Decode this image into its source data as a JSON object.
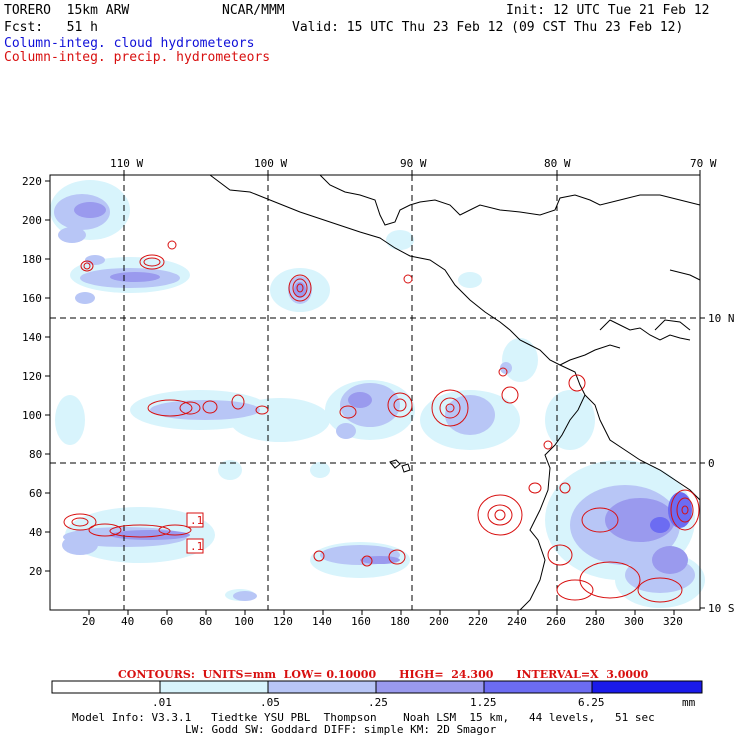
{
  "header": {
    "model": "TORERO  15km ARW",
    "center": "NCAR/MMM",
    "init": "Init: 12 UTC Tue 21 Feb 12",
    "fcst": "Fcst:   51 h",
    "valid": "Valid: 15 UTC Thu 23 Feb 12 (09 CST Thu 23 Feb 12)",
    "field1": "Column-integ. cloud hydrometeors",
    "field2": "Column-integ. precip. hydrometeors",
    "field1_color": "#1010d8",
    "field2_color": "#d81010"
  },
  "top_axis": [
    "110 W",
    "100 W",
    "90 W",
    "80 W",
    "70 W"
  ],
  "right_axis": [
    "10 N",
    "0",
    "10 S"
  ],
  "left_axis": [
    "220",
    "200",
    "180",
    "160",
    "140",
    "120",
    "100",
    "80",
    "60",
    "40",
    "20"
  ],
  "bottom_axis": [
    "20",
    "40",
    "60",
    "80",
    "100",
    "120",
    "140",
    "160",
    "180",
    "200",
    "220",
    "240",
    "260",
    "280",
    "300",
    "320"
  ],
  "plot_labels": [
    ".1",
    ".1"
  ],
  "contours_note": "CONTOURS:  UNITS=mm  LOW= 0.10000      HIGH=  24.300      INTERVAL=X  3.0000",
  "colorbar": {
    "ticks": [
      ".01",
      ".05",
      ".25",
      "1.25",
      "6.25"
    ],
    "unit": "mm",
    "colors": [
      "#ffffff",
      "#d8f4fc",
      "#b8c6f6",
      "#9a9aee",
      "#6c6cf2",
      "#1a1aea"
    ]
  },
  "footer": {
    "line1": "Model Info: V3.3.1   Tiedtke YSU PBL  Thompson    Noah LSM  15 km,   44 levels,   51 sec",
    "line2": "LW: Godd SW: Goddard DIFF: simple KM: 2D Smagor"
  }
}
